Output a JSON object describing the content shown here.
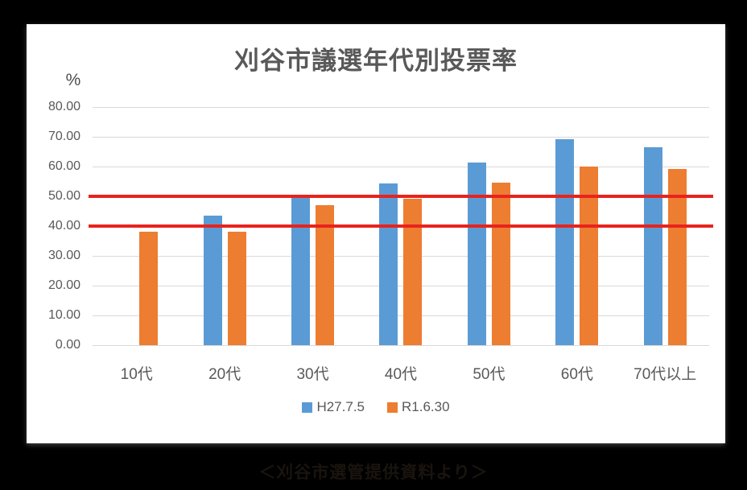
{
  "window": {
    "background": "#000000",
    "footer_caption": "＜刈谷市選管提供資料より＞"
  },
  "chart_data": {
    "type": "bar",
    "title": "刈谷市議選年代別投票率",
    "y_axis_unit": "%",
    "categories": [
      "10代",
      "20代",
      "30代",
      "40代",
      "50代",
      "60代",
      "70代以上"
    ],
    "series": [
      {
        "name": "H27.7.5",
        "color": "#5b9bd5",
        "values": [
          null,
          43.5,
          49.5,
          54.4,
          61.3,
          69.2,
          66.4
        ]
      },
      {
        "name": "R1.6.30",
        "color": "#ed7d31",
        "values": [
          38.1,
          38.1,
          47.0,
          49.3,
          54.6,
          60.0,
          59.3
        ]
      }
    ],
    "y_axis": {
      "min": 0,
      "max": 80,
      "step": 10,
      "tick_labels": [
        "80.00",
        "70.00",
        "60.00",
        "50.00",
        "40.00",
        "30.00",
        "20.00",
        "10.00",
        "0.00"
      ]
    },
    "reference_lines": [
      {
        "value": 50,
        "color": "#e8231d"
      },
      {
        "value": 40,
        "color": "#e8231d"
      }
    ],
    "legend_position": "bottom",
    "grid": true,
    "text_color": "#595959",
    "gridline_color": "#d9d9d9"
  }
}
